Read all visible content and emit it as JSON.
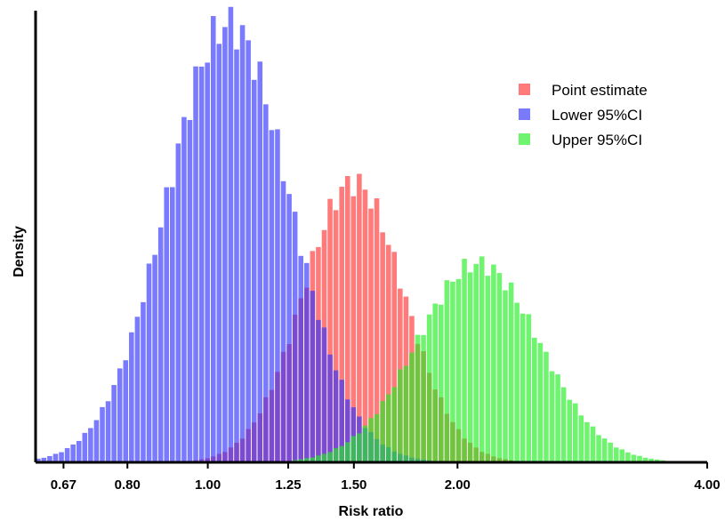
{
  "chart_data": {
    "type": "bar",
    "subtype": "overlaid-histogram",
    "xlabel": "Risk ratio",
    "ylabel": "Density",
    "x_scale": "log",
    "xlim": [
      0.62,
      4.0
    ],
    "ylim": [
      0,
      1.0
    ],
    "y_ticks_shown": false,
    "grid": false,
    "x_ticks": [
      0.67,
      0.8,
      1.0,
      1.25,
      1.5,
      2.0,
      4.0
    ],
    "x_tick_labels": [
      "0.67",
      "0.80",
      "1.00",
      "1.25",
      "1.50",
      "2.00",
      "4.00"
    ],
    "legend_position": "top-right",
    "series": [
      {
        "name": "Point estimate",
        "color": "#ff3333",
        "opacity": 0.65,
        "distribution": {
          "kind": "lognormal",
          "median": 1.5,
          "log_sd": 0.14
        },
        "peak_density": 0.62
      },
      {
        "name": "Lower 95%CI",
        "color": "#3333ff",
        "opacity": 0.65,
        "distribution": {
          "kind": "lognormal",
          "median": 1.06,
          "log_sd": 0.17
        },
        "peak_density": 0.97
      },
      {
        "name": "Upper 95%CI",
        "color": "#22ee22",
        "opacity": 0.65,
        "distribution": {
          "kind": "lognormal",
          "median": 2.12,
          "log_sd": 0.17
        },
        "peak_density": 0.44
      }
    ]
  }
}
